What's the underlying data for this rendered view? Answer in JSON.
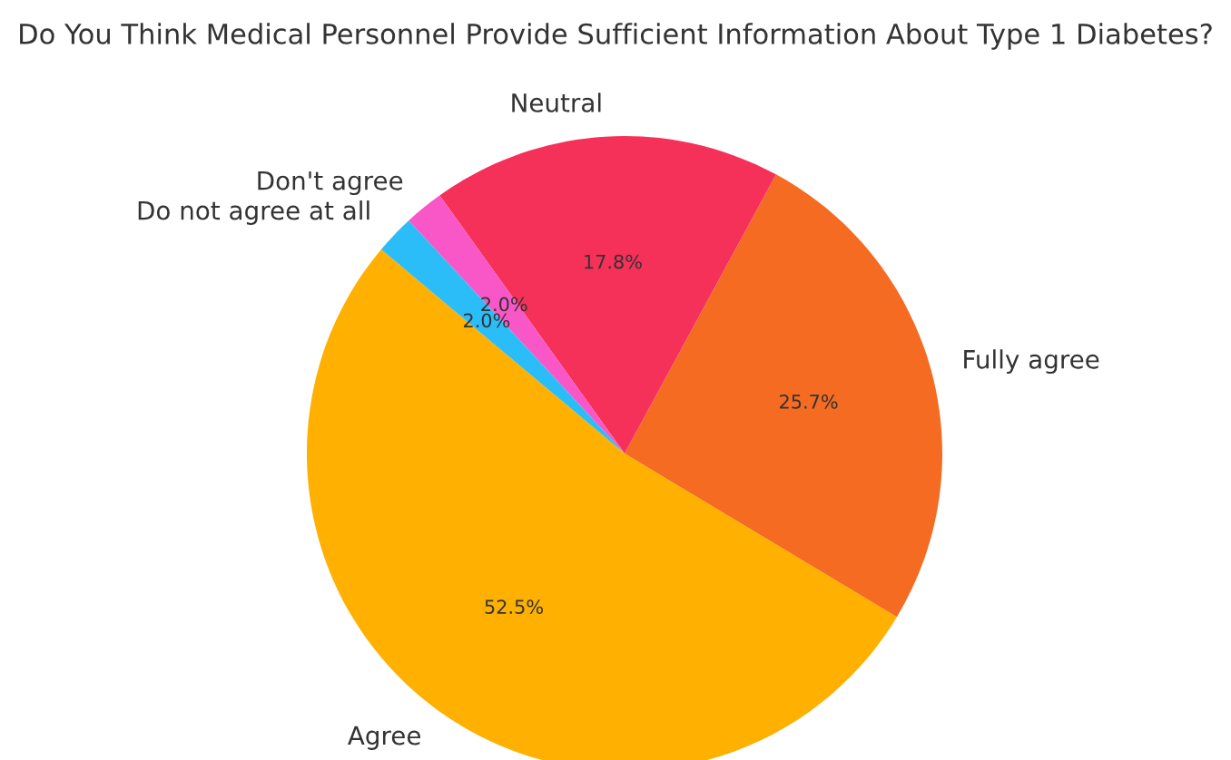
{
  "chart_data": {
    "type": "pie",
    "title": "Do You Think Medical Personnel Provide Sufficient Information About Type 1 Diabetes?",
    "categories": [
      "Agree",
      "Fully agree",
      "Neutral",
      "Don't agree",
      "Do not agree at all"
    ],
    "values": [
      52.5,
      25.7,
      17.8,
      2.0,
      2.0
    ],
    "colors": [
      "#ffb000",
      "#f46b21",
      "#f5315a",
      "#f956c8",
      "#2bbdf7"
    ],
    "value_labels": [
      "52.5%",
      "25.7%",
      "17.8%",
      "2.0%",
      "2.0%"
    ]
  }
}
